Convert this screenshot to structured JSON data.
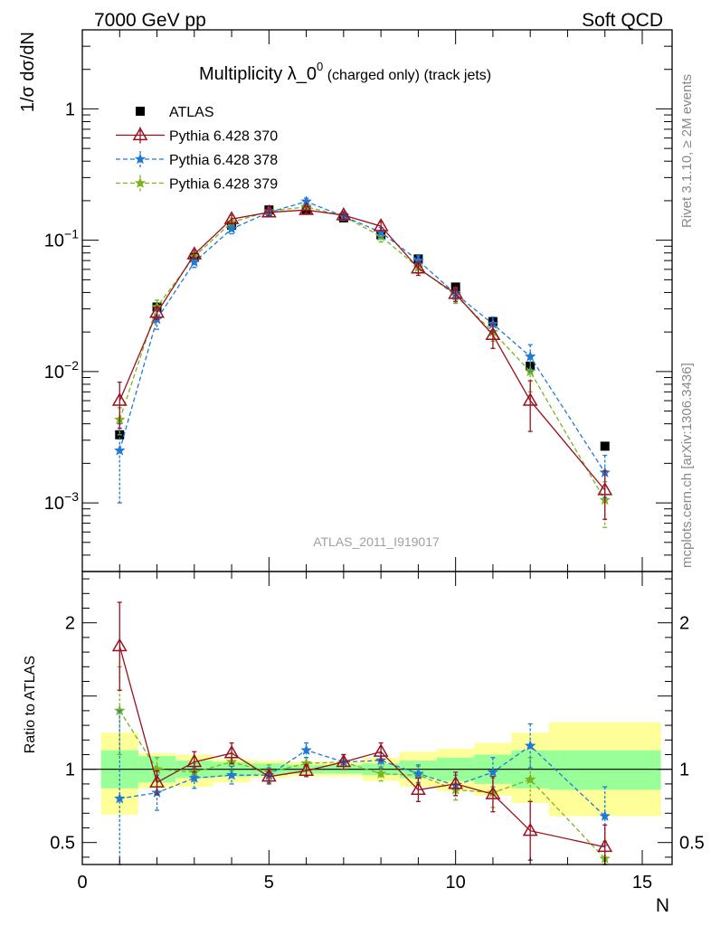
{
  "header": {
    "left": "7000 GeV pp",
    "right": "Soft QCD"
  },
  "side_labels": {
    "rivet": "Rivet 3.1.10, ≥ 2M events",
    "mcplots": "mcplots.cern.ch [arXiv:1306.3436]"
  },
  "watermark": "ATLAS_2011_I919017",
  "chart_data": [
    {
      "type": "scatter",
      "title_main": "Multiplicity λ_0",
      "title_sup": "0",
      "title_suffix": " (charged only) (track jets)",
      "ylabel": "1/σ dσ/dN",
      "yscale": "log",
      "ylim": [
        0.0003,
        4.0
      ],
      "xlim": [
        0,
        15.8
      ],
      "yticks": [
        {
          "value": 0.001,
          "base": "10",
          "exp": "−3"
        },
        {
          "value": 0.01,
          "base": "10",
          "exp": "−2"
        },
        {
          "value": 0.1,
          "base": "10",
          "exp": "−1"
        },
        {
          "value": 1,
          "base": "1",
          "exp": ""
        }
      ],
      "legend_position": "top-left",
      "series": [
        {
          "name": "ATLAS",
          "color": "#000000",
          "marker": "square",
          "line": "none",
          "x": [
            1,
            2,
            3,
            4,
            5,
            6,
            7,
            8,
            9,
            10,
            11,
            12,
            14
          ],
          "y": [
            0.0033,
            0.031,
            0.074,
            0.13,
            0.17,
            0.17,
            0.148,
            0.11,
            0.072,
            0.044,
            0.024,
            0.011,
            0.0027
          ]
        },
        {
          "name": "Pythia 6.428 370",
          "color": "#9b1020",
          "marker": "triangle",
          "line": "solid",
          "x": [
            1,
            2,
            3,
            4,
            5,
            6,
            7,
            8,
            9,
            10,
            11,
            12,
            14
          ],
          "y": [
            0.006,
            0.028,
            0.078,
            0.145,
            0.163,
            0.17,
            0.155,
            0.128,
            0.061,
            0.039,
            0.019,
            0.006,
            0.00125
          ],
          "err": [
            0.0023,
            0.003,
            0.006,
            0.01,
            0.01,
            0.01,
            0.01,
            0.01,
            0.007,
            0.005,
            0.004,
            0.0025,
            0.0005
          ]
        },
        {
          "name": "Pythia 6.428 378",
          "color": "#1f7ad6",
          "marker": "star",
          "line": "dashed",
          "x": [
            1,
            2,
            3,
            4,
            5,
            6,
            7,
            8,
            9,
            10,
            11,
            12,
            14
          ],
          "y": [
            0.0025,
            0.025,
            0.068,
            0.122,
            0.163,
            0.197,
            0.152,
            0.115,
            0.07,
            0.039,
            0.023,
            0.013,
            0.0017
          ],
          "err": [
            0.0015,
            0.004,
            0.006,
            0.01,
            0.01,
            0.012,
            0.01,
            0.01,
            0.006,
            0.004,
            0.003,
            0.003,
            0.0006
          ]
        },
        {
          "name": "Pythia 6.428 379",
          "color": "#7ab51d",
          "marker": "star",
          "line": "dashed",
          "x": [
            1,
            2,
            3,
            4,
            5,
            6,
            7,
            8,
            9,
            10,
            11,
            12,
            14
          ],
          "y": [
            0.0043,
            0.031,
            0.075,
            0.137,
            0.166,
            0.18,
            0.152,
            0.107,
            0.062,
            0.038,
            0.02,
            0.01,
            0.00105
          ],
          "err": [
            0.001,
            0.004,
            0.006,
            0.01,
            0.01,
            0.01,
            0.01,
            0.01,
            0.006,
            0.005,
            0.003,
            0.003,
            0.0004
          ]
        }
      ]
    },
    {
      "type": "scatter",
      "ylabel": "Ratio to ATLAS",
      "xlabel": "N",
      "ylim": [
        0.35,
        2.35
      ],
      "xlim": [
        0,
        15.8
      ],
      "xticks": [
        0,
        5,
        10,
        15
      ],
      "yticks": [
        0.5,
        1,
        2
      ],
      "reference_line": 1,
      "bands": {
        "edges": [
          0.5,
          1.5,
          2.5,
          3.5,
          4.5,
          5.5,
          6.5,
          7.5,
          8.5,
          9.5,
          10.5,
          11.5,
          12.5,
          15.5
        ],
        "inner": [
          [
            0.87,
            1.13
          ],
          [
            0.91,
            1.09
          ],
          [
            0.94,
            1.06
          ],
          [
            0.95,
            1.05
          ],
          [
            0.96,
            1.04
          ],
          [
            0.97,
            1.03
          ],
          [
            0.97,
            1.03
          ],
          [
            0.96,
            1.04
          ],
          [
            0.94,
            1.06
          ],
          [
            0.92,
            1.08
          ],
          [
            0.9,
            1.1
          ],
          [
            0.87,
            1.13
          ],
          [
            0.86,
            1.13
          ]
        ],
        "outer": [
          [
            0.69,
            1.25
          ],
          [
            0.87,
            1.11
          ],
          [
            0.88,
            1.1
          ],
          [
            0.91,
            1.07
          ],
          [
            0.94,
            1.06
          ],
          [
            0.95,
            1.05
          ],
          [
            0.95,
            1.05
          ],
          [
            0.92,
            1.08
          ],
          [
            0.88,
            1.12
          ],
          [
            0.85,
            1.14
          ],
          [
            0.82,
            1.18
          ],
          [
            0.77,
            1.25
          ],
          [
            0.68,
            1.32
          ]
        ]
      },
      "series": [
        {
          "name": "Pythia 6.428 370",
          "color": "#9b1020",
          "marker": "triangle",
          "line": "solid",
          "x": [
            1,
            2,
            3,
            4,
            5,
            6,
            7,
            8,
            9,
            10,
            11,
            12,
            14
          ],
          "y": [
            1.84,
            0.91,
            1.05,
            1.11,
            0.95,
            0.99,
            1.05,
            1.12,
            0.86,
            0.9,
            0.83,
            0.58,
            0.47
          ],
          "err": [
            0.3,
            0.08,
            0.07,
            0.07,
            0.05,
            0.04,
            0.05,
            0.06,
            0.08,
            0.08,
            0.12,
            0.2,
            0.15
          ]
        },
        {
          "name": "Pythia 6.428 378",
          "color": "#1f7ad6",
          "marker": "star",
          "line": "dashed",
          "x": [
            1,
            2,
            3,
            4,
            5,
            6,
            7,
            8,
            9,
            10,
            11,
            12,
            14
          ],
          "y": [
            0.8,
            0.84,
            0.94,
            0.96,
            0.96,
            1.13,
            1.05,
            1.06,
            0.97,
            0.89,
            0.98,
            1.16,
            0.68
          ],
          "err": [
            0.6,
            0.12,
            0.07,
            0.06,
            0.05,
            0.05,
            0.05,
            0.05,
            0.06,
            0.07,
            0.1,
            0.15,
            0.2
          ]
        },
        {
          "name": "Pythia 6.428 379",
          "color": "#7ab51d",
          "marker": "star",
          "line": "dashed",
          "x": [
            1,
            2,
            3,
            4,
            5,
            6,
            7,
            8,
            9,
            10,
            11,
            12,
            14
          ],
          "y": [
            1.4,
            1.0,
            0.98,
            1.05,
            0.98,
            1.04,
            1.05,
            0.97,
            0.96,
            0.86,
            0.84,
            0.93,
            0.39
          ],
          "err": [
            0.3,
            0.08,
            0.06,
            0.06,
            0.05,
            0.04,
            0.05,
            0.05,
            0.06,
            0.07,
            0.1,
            0.15,
            0.12
          ]
        }
      ]
    }
  ]
}
